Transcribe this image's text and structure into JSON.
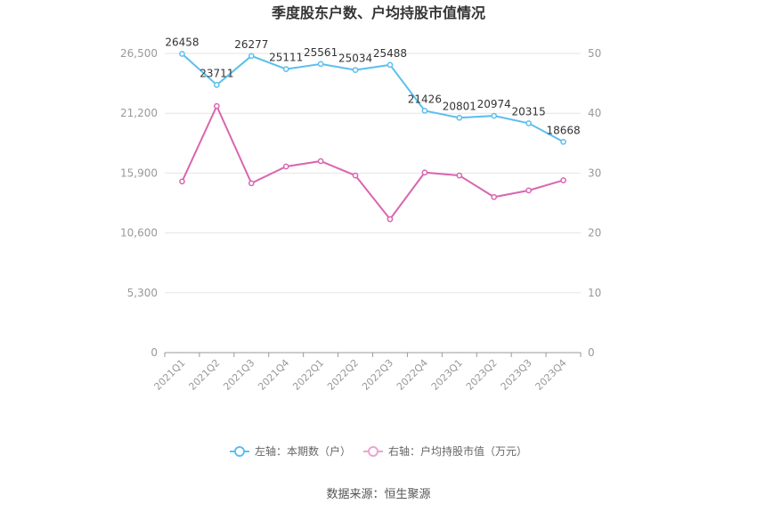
{
  "chart_data": {
    "type": "line",
    "title": "季度股东户数、户均持股市值情况",
    "categories": [
      "2021Q1",
      "2021Q2",
      "2021Q3",
      "2021Q4",
      "2022Q1",
      "2022Q2",
      "2022Q3",
      "2022Q4",
      "2023Q1",
      "2023Q2",
      "2023Q3",
      "2023Q4"
    ],
    "left_axis": {
      "ticks": [
        "0",
        "5,300",
        "10,600",
        "15,900",
        "21,200",
        "26,500"
      ],
      "ylim": [
        0,
        26500
      ]
    },
    "right_axis": {
      "ticks": [
        "0",
        "10",
        "20",
        "30",
        "40",
        "50"
      ],
      "ylim": [
        0,
        50
      ]
    },
    "series": [
      {
        "name": "左轴：本期数（户）",
        "axis": "left",
        "color": "#5bbfee",
        "values": [
          26458,
          23711,
          26277,
          25111,
          25561,
          25034,
          25488,
          21426,
          20801,
          20974,
          20315,
          18668
        ],
        "labels": [
          "26458",
          "23711",
          "26277",
          "25111",
          "25561",
          "25034",
          "25488",
          "21426",
          "20801",
          "20974",
          "20315",
          "18668"
        ]
      },
      {
        "name": "右轴：户均持股市值（万元）",
        "axis": "right",
        "color": "#d966b0",
        "values": [
          28.6,
          41.2,
          28.3,
          31.1,
          32.0,
          29.6,
          22.3,
          30.1,
          29.6,
          26.0,
          27.1,
          28.8
        ]
      }
    ],
    "grid": true,
    "legend_position": "bottom"
  },
  "footer": {
    "source": "数据来源：恒生聚源"
  }
}
